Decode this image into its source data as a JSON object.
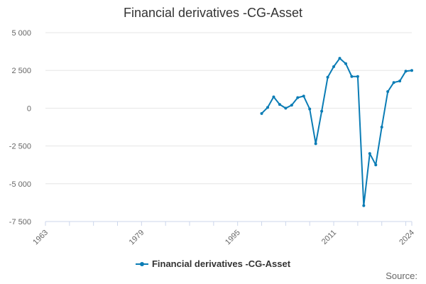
{
  "title": "Financial derivatives -CG-Asset",
  "source_label": "Source:",
  "colors": {
    "series": "#0a7cb5",
    "grid": "#e6e6e6",
    "axis_text": "#666666"
  },
  "chart_data": {
    "type": "line",
    "ylim": [
      -7500,
      5000
    ],
    "yticks": [
      5000,
      2500,
      0,
      -2500,
      -5000,
      -7500
    ],
    "ytick_labels": [
      "5 000",
      "2 500",
      "0",
      "-2 500",
      "-5 000",
      "-7 500"
    ],
    "xlim": [
      1963,
      2024
    ],
    "xticks_minor": [
      1963,
      1967,
      1971,
      1975,
      1979,
      1983,
      1987,
      1991,
      1995,
      1999,
      2003,
      2007,
      2011,
      2015,
      2019,
      2023,
      2024
    ],
    "xticks_labeled": [
      1963,
      1979,
      1995,
      2011,
      2024
    ],
    "xtick_labels": [
      "1963",
      "1979",
      "1995",
      "2011",
      "2024"
    ],
    "grid": "horizontal",
    "legend_position": "bottom-center",
    "series": [
      {
        "name": "Financial derivatives -CG-Asset",
        "x": [
          1999,
          2000,
          2001,
          2002,
          2003,
          2004,
          2005,
          2006,
          2007,
          2008,
          2009,
          2010,
          2011,
          2012,
          2013,
          2014,
          2015,
          2016,
          2017,
          2018,
          2019,
          2020,
          2021,
          2022,
          2023,
          2024
        ],
        "values": [
          -350,
          50,
          750,
          250,
          0,
          200,
          700,
          800,
          -50,
          -2350,
          -200,
          2050,
          2750,
          3300,
          2950,
          2100,
          2100,
          -6450,
          -3000,
          -3750,
          -1250,
          1100,
          1700,
          1800,
          2450,
          2500
        ]
      }
    ]
  }
}
